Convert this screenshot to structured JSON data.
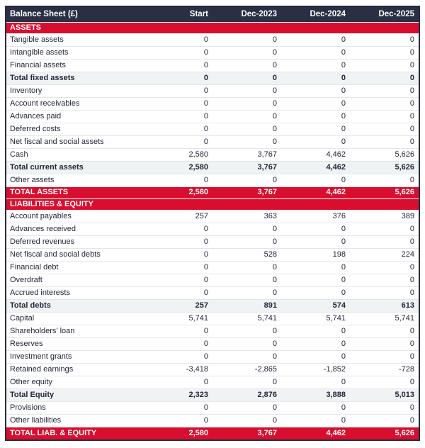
{
  "header": {
    "title": "Balance Sheet (£)",
    "columns": [
      "Start",
      "Dec-2023",
      "Dec-2024",
      "Dec-2025"
    ]
  },
  "rows": [
    {
      "type": "section",
      "label": "ASSETS",
      "values": [
        "",
        "",
        "",
        ""
      ]
    },
    {
      "type": "data",
      "label": "Tangible assets",
      "values": [
        "0",
        "0",
        "0",
        "0"
      ]
    },
    {
      "type": "data",
      "label": "Intangible assets",
      "values": [
        "0",
        "0",
        "0",
        "0"
      ]
    },
    {
      "type": "data",
      "label": "Financial assets",
      "values": [
        "0",
        "0",
        "0",
        "0"
      ]
    },
    {
      "type": "subtotal",
      "label": "Total fixed assets",
      "values": [
        "0",
        "0",
        "0",
        "0"
      ]
    },
    {
      "type": "data",
      "label": "Inventory",
      "values": [
        "0",
        "0",
        "0",
        "0"
      ]
    },
    {
      "type": "data",
      "label": "Account receivables",
      "values": [
        "0",
        "0",
        "0",
        "0"
      ]
    },
    {
      "type": "data",
      "label": "Advances paid",
      "values": [
        "0",
        "0",
        "0",
        "0"
      ]
    },
    {
      "type": "data",
      "label": "Deferred costs",
      "values": [
        "0",
        "0",
        "0",
        "0"
      ]
    },
    {
      "type": "data",
      "label": "Net fiscal and social assets",
      "values": [
        "0",
        "0",
        "0",
        "0"
      ]
    },
    {
      "type": "data",
      "label": "Cash",
      "values": [
        "2,580",
        "3,767",
        "4,462",
        "5,626"
      ]
    },
    {
      "type": "subtotal",
      "label": "Total current assets",
      "values": [
        "2,580",
        "3,767",
        "4,462",
        "5,626"
      ]
    },
    {
      "type": "data",
      "label": "Other assets",
      "values": [
        "0",
        "0",
        "0",
        "0"
      ]
    },
    {
      "type": "grandtotal",
      "label": "TOTAL ASSETS",
      "values": [
        "2,580",
        "3,767",
        "4,462",
        "5,626"
      ]
    },
    {
      "type": "gap",
      "label": "",
      "values": [
        "",
        "",
        "",
        ""
      ]
    },
    {
      "type": "section",
      "label": "LIABILITIES & EQUITY",
      "values": [
        "",
        "",
        "",
        ""
      ]
    },
    {
      "type": "data",
      "label": "Account payables",
      "values": [
        "257",
        "363",
        "376",
        "389"
      ]
    },
    {
      "type": "data",
      "label": "Advances received",
      "values": [
        "0",
        "0",
        "0",
        "0"
      ]
    },
    {
      "type": "data",
      "label": "Deferred revenues",
      "values": [
        "0",
        "0",
        "0",
        "0"
      ]
    },
    {
      "type": "data",
      "label": "Net fiscal and social debts",
      "values": [
        "0",
        "528",
        "198",
        "224"
      ]
    },
    {
      "type": "data",
      "label": "Financial debt",
      "values": [
        "0",
        "0",
        "0",
        "0"
      ]
    },
    {
      "type": "data",
      "label": "Overdraft",
      "values": [
        "0",
        "0",
        "0",
        "0"
      ]
    },
    {
      "type": "data",
      "label": "Accrued interests",
      "values": [
        "0",
        "0",
        "0",
        "0"
      ]
    },
    {
      "type": "subtotal",
      "label": "Total debts",
      "values": [
        "257",
        "891",
        "574",
        "613"
      ]
    },
    {
      "type": "data",
      "label": "Capital",
      "values": [
        "5,741",
        "5,741",
        "5,741",
        "5,741"
      ]
    },
    {
      "type": "data",
      "label": "Shareholders' loan",
      "values": [
        "0",
        "0",
        "0",
        "0"
      ]
    },
    {
      "type": "data",
      "label": "Reserves",
      "values": [
        "0",
        "0",
        "0",
        "0"
      ]
    },
    {
      "type": "data",
      "label": "Investment grants",
      "values": [
        "0",
        "0",
        "0",
        "0"
      ]
    },
    {
      "type": "data",
      "label": "Retained earnings",
      "values": [
        "-3,418",
        "-2,865",
        "-1,852",
        "-728"
      ]
    },
    {
      "type": "data",
      "label": "Other equity",
      "values": [
        "0",
        "0",
        "0",
        "0"
      ]
    },
    {
      "type": "subtotal",
      "label": "Total Equity",
      "values": [
        "2,323",
        "2,876",
        "3,888",
        "5,013"
      ]
    },
    {
      "type": "data",
      "label": "Provisions",
      "values": [
        "0",
        "0",
        "0",
        "0"
      ]
    },
    {
      "type": "data",
      "label": "Other liabilities",
      "values": [
        "0",
        "0",
        "0",
        "0"
      ]
    },
    {
      "type": "grandtotal",
      "label": "TOTAL LIAB. & EQUITY",
      "values": [
        "2,580",
        "3,767",
        "4,462",
        "5,626"
      ]
    }
  ],
  "colors": {
    "header_bg": "#2b2f44",
    "accent_red": "#d90e2e",
    "subtotal_bg": "#f0f3f4",
    "text": "#23273a",
    "row_border": "#e4e7e9"
  }
}
